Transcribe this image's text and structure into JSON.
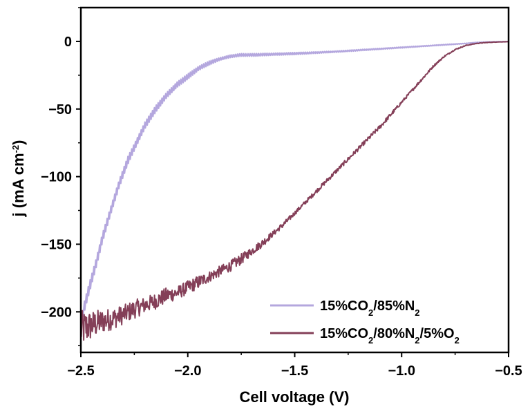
{
  "chart_data": {
    "type": "line",
    "xlabel": "Cell voltage (V)",
    "ylabel_parts": [
      {
        "text": "j (mA cm",
        "shift": "none"
      },
      {
        "text": "-2",
        "shift": "super"
      },
      {
        "text": ")",
        "shift": "none"
      }
    ],
    "xlim": [
      -2.5,
      -0.5
    ],
    "ylim": [
      -230,
      25
    ],
    "x_ticks": [
      -2.5,
      -2.0,
      -1.5,
      -1.0,
      -0.5
    ],
    "x_tick_labels": [
      "−2.5",
      "−2.0",
      "−1.5",
      "−1.0",
      "−0.5"
    ],
    "y_ticks": [
      0,
      -50,
      -100,
      -150,
      -200
    ],
    "y_tick_labels": [
      "0",
      "−50",
      "−100",
      "−150",
      "−200"
    ],
    "grid": false,
    "legend_position": "bottom-right",
    "series": [
      {
        "name": "15%CO2/85%N2",
        "name_parts": [
          {
            "text": "15%CO",
            "shift": "none"
          },
          {
            "text": "2",
            "shift": "sub"
          },
          {
            "text": "/85%N",
            "shift": "none"
          },
          {
            "text": "2",
            "shift": "sub"
          }
        ],
        "color": "#b4a7de",
        "noise_pattern": "sawtooth",
        "x": [
          -2.49,
          -2.46,
          -2.43,
          -2.4,
          -2.36,
          -2.32,
          -2.28,
          -2.24,
          -2.2,
          -2.15,
          -2.1,
          -2.05,
          -2.0,
          -1.95,
          -1.9,
          -1.85,
          -1.8,
          -1.75,
          -1.7,
          -1.6,
          -1.5,
          -1.4,
          -1.3,
          -1.2,
          -1.1,
          -1.0,
          -0.9,
          -0.8,
          -0.7,
          -0.65,
          -0.6,
          -0.55,
          -0.5
        ],
        "y": [
          -200,
          -182,
          -165,
          -146,
          -125,
          -105,
          -88,
          -75,
          -62,
          -50,
          -40,
          -32,
          -26,
          -20,
          -16,
          -13,
          -11,
          -10,
          -10,
          -9.5,
          -9,
          -8.3,
          -7.5,
          -6.5,
          -5.5,
          -4.5,
          -3.5,
          -2.5,
          -1.5,
          -0.8,
          -0.4,
          -0.2,
          -0.1
        ],
        "jitter": [
          4,
          4,
          3.5,
          3.5,
          3,
          3,
          3,
          2.5,
          2.5,
          2.5,
          2,
          2,
          2,
          1.5,
          1.5,
          1,
          1,
          1,
          1,
          0.8,
          0.8,
          0.6,
          0.5,
          0.5,
          0.4,
          0.4,
          0.3,
          0.3,
          0.2,
          0.2,
          0.1,
          0.1,
          0.1
        ]
      },
      {
        "name": "15%CO2/80%N2/5%O2",
        "name_parts": [
          {
            "text": "15%CO",
            "shift": "none"
          },
          {
            "text": "2",
            "shift": "sub"
          },
          {
            "text": "/80%N",
            "shift": "none"
          },
          {
            "text": "2",
            "shift": "sub"
          },
          {
            "text": "/5%O",
            "shift": "none"
          },
          {
            "text": "2",
            "shift": "sub"
          }
        ],
        "color": "#843f58",
        "noise_pattern": "noise",
        "x": [
          -2.5,
          -2.45,
          -2.4,
          -2.35,
          -2.3,
          -2.25,
          -2.2,
          -2.15,
          -2.1,
          -2.05,
          -2.0,
          -1.95,
          -1.9,
          -1.85,
          -1.8,
          -1.75,
          -1.7,
          -1.65,
          -1.6,
          -1.55,
          -1.5,
          -1.45,
          -1.4,
          -1.35,
          -1.3,
          -1.25,
          -1.2,
          -1.15,
          -1.1,
          -1.05,
          -1.0,
          -0.95,
          -0.9,
          -0.85,
          -0.8,
          -0.75,
          -0.7,
          -0.65,
          -0.6,
          -0.55,
          -0.5
        ],
        "y": [
          -213,
          -210,
          -207,
          -205,
          -202,
          -198,
          -195,
          -192,
          -188,
          -186,
          -182,
          -178,
          -174,
          -170,
          -166,
          -161,
          -155,
          -149,
          -142,
          -135,
          -127,
          -119,
          -111,
          -103,
          -95,
          -87,
          -79,
          -71,
          -63,
          -54,
          -45,
          -36,
          -27,
          -18,
          -11,
          -6,
          -3,
          -1.5,
          -0.8,
          -0.4,
          -0.2
        ],
        "jitter": [
          14,
          11,
          9,
          8,
          7,
          7,
          6,
          6,
          6,
          5,
          5,
          5,
          4,
          4,
          4,
          4,
          3,
          3,
          2,
          2,
          1.5,
          1.5,
          1.5,
          1.5,
          1.5,
          1.5,
          1.5,
          1.5,
          1.5,
          1.5,
          1,
          1,
          1,
          0.8,
          0.5,
          0.4,
          0.3,
          0.2,
          0.2,
          0.1,
          0.1
        ]
      }
    ]
  }
}
